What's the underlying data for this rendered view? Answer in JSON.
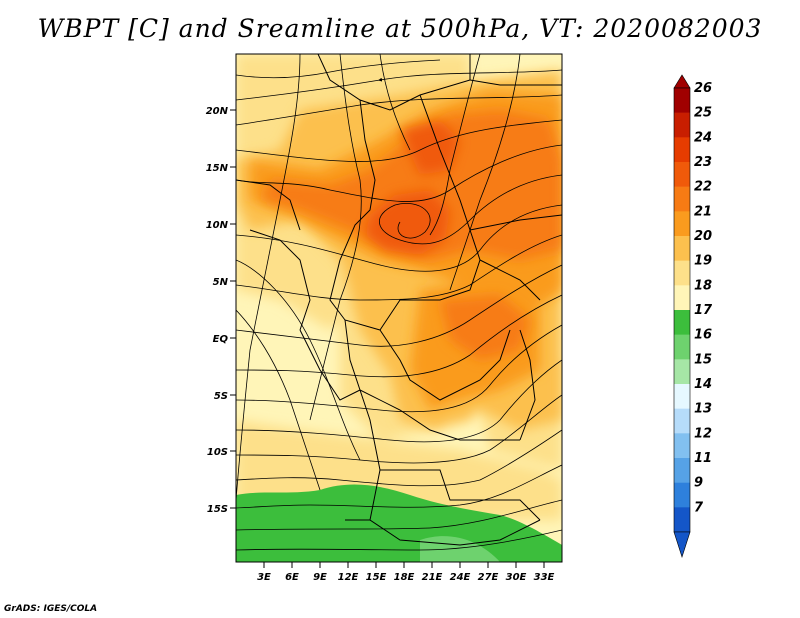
{
  "title": "WBPT [C] and Sreamline at 500hPa, VT: 2020082003",
  "credit": "GrADS: IGES/COLA",
  "map": {
    "variable": "Wet-bulb potential temperature (C) with 500hPa streamlines",
    "lat_labels": [
      "20N",
      "15N",
      "10N",
      "5N",
      "EQ",
      "5S",
      "10S",
      "15S"
    ],
    "lon_labels": [
      "3E",
      "6E",
      "9E",
      "12E",
      "15E",
      "18E",
      "21E",
      "24E",
      "27E",
      "30E",
      "33E"
    ]
  },
  "colorbar": {
    "labels": [
      "26",
      "25",
      "24",
      "23",
      "22",
      "21",
      "20",
      "19",
      "18",
      "17",
      "16",
      "15",
      "14",
      "13",
      "12",
      "11",
      "9",
      "7"
    ],
    "colors": [
      "#a00000",
      "#c81e00",
      "#e63c00",
      "#f05a0a",
      "#f77b14",
      "#fa9b1e",
      "#fcc04e",
      "#fde08a",
      "#fff5b8",
      "#3cbe3c",
      "#6ed26e",
      "#a6e6a6",
      "#e6f8ff",
      "#b6dcfa",
      "#82c0f0",
      "#56a2e6",
      "#2e80dc",
      "#1456c8"
    ]
  },
  "colors": {
    "pale": "#fff5b8",
    "cream": "#fde08a",
    "light_orange": "#fcc04e",
    "orange": "#fa9b1e",
    "dark_orange": "#f77b14",
    "red_orange": "#f05a0a",
    "green": "#3cbe3c",
    "light_green": "#6ed26e"
  }
}
